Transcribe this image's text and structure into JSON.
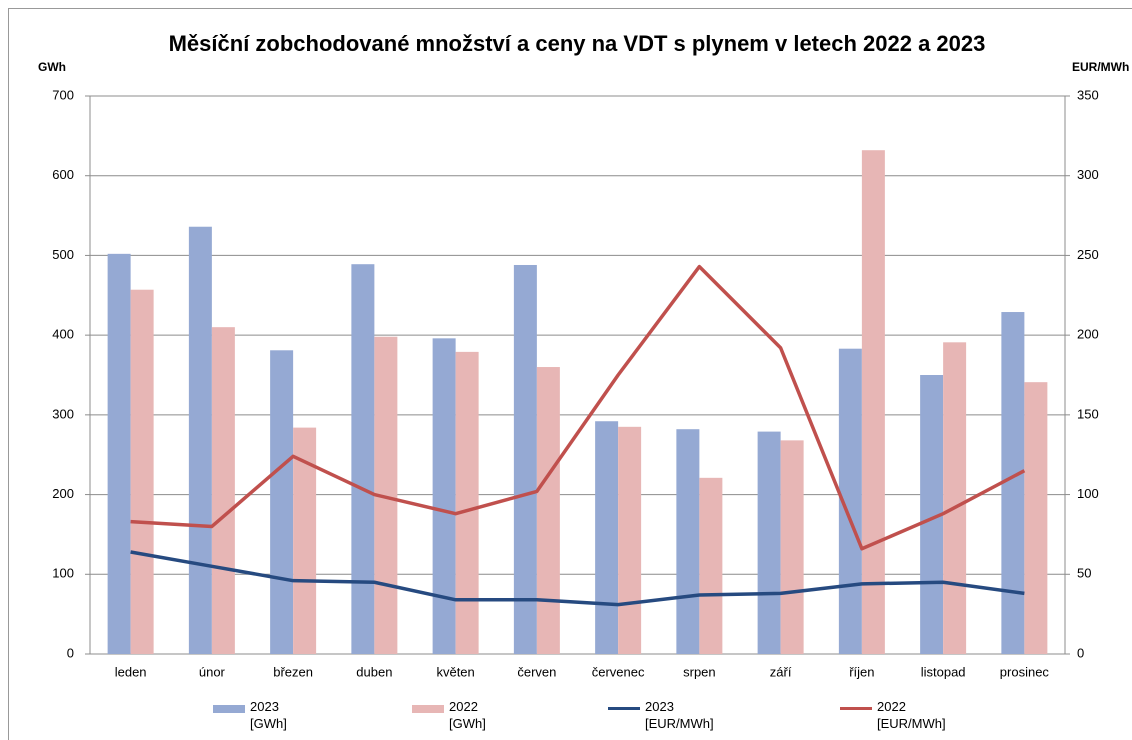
{
  "chart_data": {
    "type": "bar",
    "title": "Měsíční zobchodované množství a ceny na VDT s plynem v letech 2022 a 2023",
    "y_label": "GWh",
    "y2_label": "EUR/MWh",
    "categories": [
      "leden",
      "únor",
      "březen",
      "duben",
      "květen",
      "červen",
      "červenec",
      "srpen",
      "září",
      "říjen",
      "listopad",
      "prosinec"
    ],
    "series": [
      {
        "name": "2023 [GWh]",
        "type": "bar",
        "color": "#95a9d3",
        "values": [
          502,
          536,
          381,
          489,
          396,
          488,
          292,
          282,
          279,
          383,
          350,
          429
        ]
      },
      {
        "name": "2022 [GWh]",
        "type": "bar",
        "color": "#e7b6b5",
        "values": [
          457,
          410,
          284,
          398,
          379,
          360,
          285,
          221,
          268,
          632,
          391,
          341
        ]
      },
      {
        "name": "2023 [EUR/MWh]",
        "type": "line",
        "axis": "y2",
        "color": "#264a80",
        "values": [
          64,
          55,
          46,
          45,
          34,
          34,
          31,
          37,
          38,
          44,
          45,
          38
        ]
      },
      {
        "name": "2022 [EUR/MWh]",
        "type": "line",
        "axis": "y2",
        "color": "#c0504d",
        "values": [
          83,
          80,
          124,
          100,
          88,
          102,
          175,
          243,
          192,
          66,
          88,
          115
        ]
      }
    ],
    "ylim": [
      0,
      700
    ],
    "yticks": [
      0,
      100,
      200,
      300,
      400,
      500,
      600,
      700
    ],
    "y2lim": [
      0,
      350
    ],
    "y2ticks": [
      0,
      50,
      100,
      150,
      200,
      250,
      300,
      350
    ],
    "grid": true
  }
}
